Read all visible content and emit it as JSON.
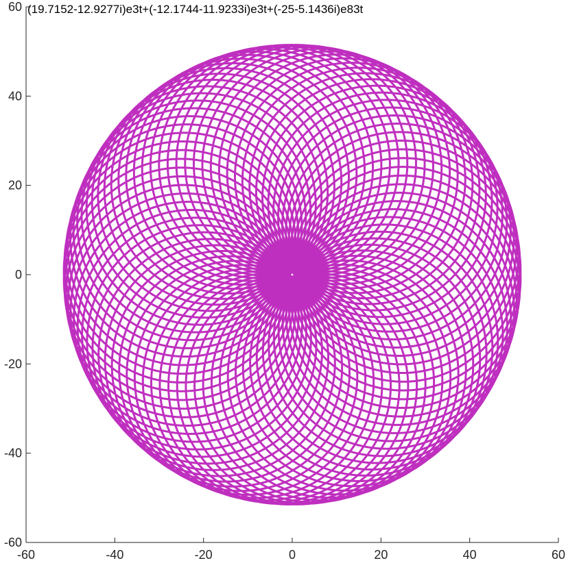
{
  "chart_data": {
    "type": "line",
    "title": "(19.7152-12.9277i)e3t+(-12.1744-11.9233i)e3t+(-25-5.1436i)e83t",
    "xlabel": "",
    "ylabel": "",
    "xlim": [
      -60,
      60
    ],
    "ylim": [
      -60,
      60
    ],
    "x_ticks": [
      -60,
      -40,
      -20,
      0,
      20,
      40,
      60
    ],
    "y_ticks": [
      -60,
      -40,
      -20,
      0,
      20,
      40,
      60
    ],
    "grid": false,
    "series": [
      {
        "curve": "sum of rotating complex phasors",
        "terms": [
          {
            "re": 19.7152,
            "im": -12.9277,
            "freq": 3
          },
          {
            "re": -12.1744,
            "im": -11.9233,
            "freq": 3
          },
          {
            "re": -25,
            "im": -5.1436,
            "freq": 83
          }
        ],
        "t_range": [
          0,
          6.283185307
        ],
        "color": "#bf2fbf"
      }
    ]
  }
}
